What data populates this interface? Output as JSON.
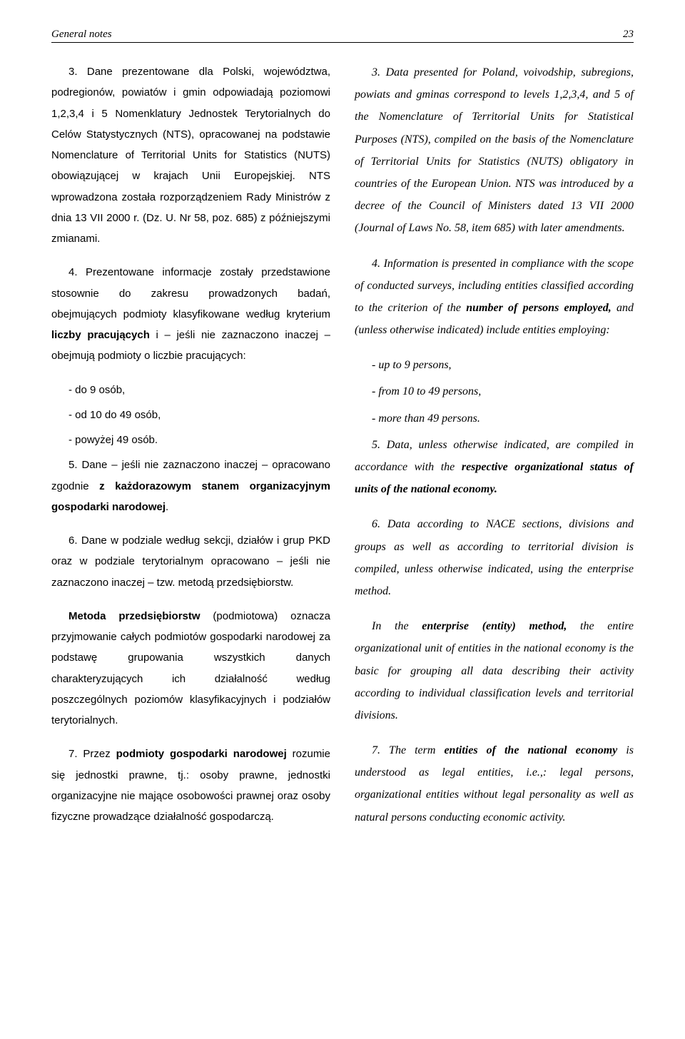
{
  "page": {
    "running_head": "General notes",
    "page_number": "23"
  },
  "left": {
    "p3_a": "3. Dane prezentowane dla Polski, wojewódz­twa, podregionów, powiatów i gmin odpowiadają poziomowi 1,2,3,4 i 5 Nomenklatury Jednostek Terytorialnych do Celów Statystycznych (NTS), opracowanej na podstawie Nomenclature of Ter­ritorial Units for Statistics (NUTS) obowiązującej w krajach Unii Europejskiej. NTS wprowadzona została rozporządzeniem Rady Ministrów z dnia 13 VII 2000 r. (Dz. U. Nr 58, poz. 685) z później­szymi zmianami.",
    "p4_a": "4. Prezentowane informacje  zostały przed­stawione stosownie do zakresu prowadzonych badań, obejmujących podmioty klasyfikowane według kryterium ",
    "p4_b": "liczby pracujących",
    "p4_c": " i – jeśli nie zaznaczono inaczej – obejmują podmioty o licz­bie pracujących:",
    "li1": "- do 9 osób,",
    "li2": "- od  10 do 49 osób,",
    "li3": "- powyżej 49 osób.",
    "p5_a": "5. Dane – jeśli nie zaznaczono inaczej – opra­cowano zgodnie ",
    "p5_b": "z każdorazowym stanem or­ganizacyjnym gospodarki narodowej",
    "p5_c": ".",
    "p6": "6. Dane w podziale według sekcji, działów i grup PKD oraz w podziale terytorialnym opra­cowano – jeśli nie zaznaczono inaczej – tzw. metodą przedsiębiorstw.",
    "pM_a": "Metoda przedsiębiorstw",
    "pM_b": " (podmiotowa) ozna­cza przyjmowanie całych podmiotów gospodarki narodowej za podstawę grupowania wszystkich danych charakteryzujących ich działalność we­dług poszczególnych poziomów klasyfikacyjnych i podziałów terytorialnych.",
    "p7_a": "7. Przez ",
    "p7_b": "podmioty gospodarki narodowej",
    "p7_c": " rozumie się jednostki prawne, tj.: osoby prawne, jednostki organizacyjne nie mające osobowości prawnej oraz osoby fizyczne prowadzące dzia­łalność gospodarczą."
  },
  "right": {
    "p3": "3. Data presented for Poland, voivodship, subregions, powiats and gminas correspond to lev­els 1,2,3,4, and 5 of the Nomenclature of Territorial Units for Statistical Purposes (NTS), compiled on the basis of the Nomenclature of Territorial Units for Statistics (NUTS) obligatory in countries of the European Union. NTS was introduced by a decree of the Council of Ministers dated 13 VII 2000 (Journal of Laws No. 58, item 685) with later amendments.",
    "p4_a": "4. Information is presented in compliance with the scope of conducted surveys, including entities classified according to the criterion of the ",
    "p4_b": "num­ber of persons employed,",
    "p4_c": " and (unless otherwise indicated) include entities employing:",
    "li1": "- up to 9 persons,",
    "li2": "- from 10 to 49 persons,",
    "li3": "- more than 49 persons.",
    "p5_a": "5. Data, unless otherwise indicated, are com­piled in accordance with the ",
    "p5_b": "respective organiza­tional status of units of the national economy.",
    "p6": "6. Data according to NACE sections, divi­sions and groups as well as according to territo­rial division is compiled, unless otherwise indi­cated, using the enterprise method.",
    "pM_a": "In the ",
    "pM_b": "enterprise (entity) method,",
    "pM_c": " the entire organizational unit of entities in the national economy is the basic for grouping all data de­scribing their activity according to individual classification levels and territorial divisions.",
    "p7_a": "7. The term ",
    "p7_b": "entities of the national economy",
    "p7_c": " is understood as legal entities, i.e.,: legal per­sons, organizational entities without legal per­sonality as well as natural persons conducting economic activity."
  }
}
